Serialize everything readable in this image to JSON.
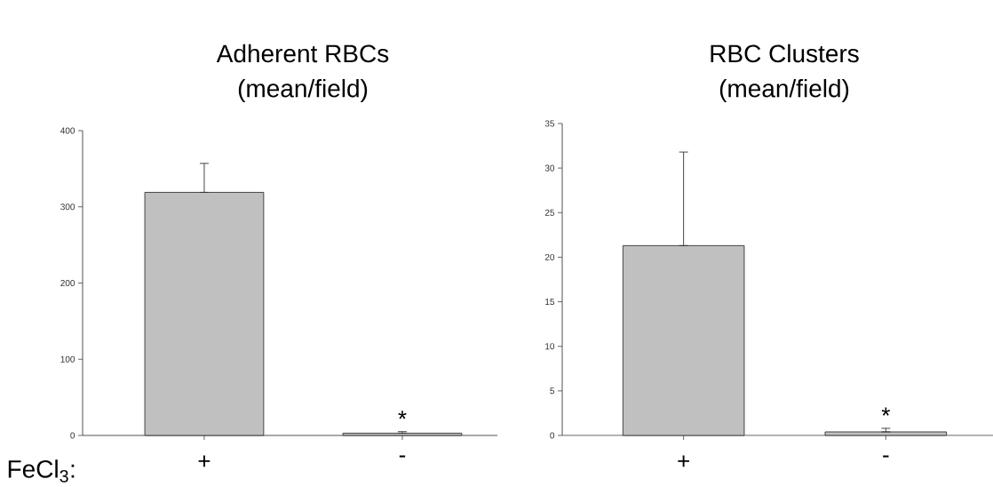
{
  "chart_data": [
    {
      "type": "bar",
      "title": "Adherent RBCs",
      "subtitle": "(mean/field)",
      "categories": [
        "+",
        "-"
      ],
      "values": [
        319,
        3
      ],
      "errors": [
        [
          319,
          357
        ],
        [
          3,
          5
        ]
      ],
      "color": "#c0c0c0",
      "ylim": [
        0,
        400
      ],
      "yticks": [
        0,
        100,
        200,
        300,
        400
      ],
      "annotations": [
        "FeCl$_{3}$:",
        {
          "text": "*",
          "x": "-",
          "y": 5
        }
      ]
    },
    {
      "type": "bar",
      "title": "RBC Clusters",
      "subtitle": "(mean/field)",
      "categories": [
        "+",
        "-"
      ],
      "values": [
        21.3,
        0.4
      ],
      "errors": [
        [
          21.3,
          31.8
        ],
        [
          0.4,
          0.8
        ]
      ],
      "color": "#c0c0c0",
      "ylim": [
        0,
        35
      ],
      "yticks": [
        0,
        5,
        10,
        15,
        20,
        25,
        30,
        35
      ],
      "annotations": [
        {
          "text": "*",
          "x": "-",
          "y": 0.8
        }
      ]
    }
  ]
}
